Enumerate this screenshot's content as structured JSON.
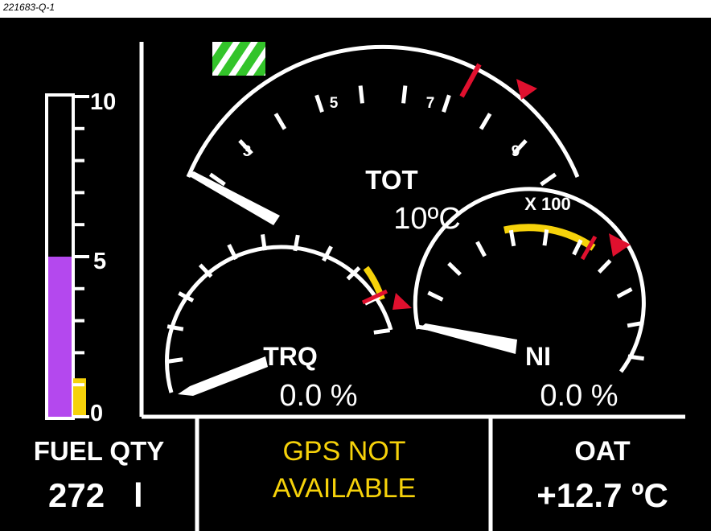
{
  "caption": "221683-Q-1",
  "fuel_scale": {
    "max_label": "10",
    "mid_label": "5",
    "min_label": "0"
  },
  "fuel_level_fraction": 0.5,
  "fuel_low_fraction": 0.12,
  "tot": {
    "title": "TOT",
    "value": "10ºC",
    "multiplier": "X 100",
    "labels": [
      "3",
      "5",
      "7",
      "9"
    ]
  },
  "trq": {
    "title": "TRQ",
    "value": "0.0 %"
  },
  "n1": {
    "title": "NI",
    "value": "0.0 %"
  },
  "fuel_qty": {
    "title": "FUEL QTY",
    "value": "272",
    "unit": "l"
  },
  "gps": {
    "line1": "GPS NOT",
    "line2": "AVAILABLE"
  },
  "oat": {
    "title": "OAT",
    "value": "+12.7 ºC"
  },
  "colors": {
    "fuel": "#b448ee",
    "caution": "#f6d20a",
    "warning": "#e0102e",
    "status": "#33c42a",
    "text": "#ffffff",
    "gps_text": "#f6d20a"
  }
}
